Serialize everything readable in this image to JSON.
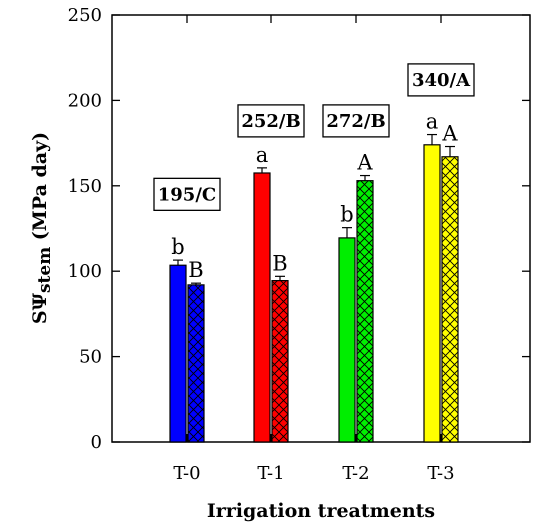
{
  "chart_data": {
    "type": "bar",
    "xlabel": "Irrigation treatments",
    "ylabel_main": "S",
    "ylabel_psi": "Ψ",
    "ylabel_sub": "stem",
    "ylabel_units": " (MPa day)",
    "ylim": [
      0,
      250
    ],
    "yticks": [
      0,
      50,
      100,
      150,
      200,
      250
    ],
    "ytick_labels": [
      "0",
      "50",
      "100",
      "150",
      "200",
      "250"
    ],
    "grid": false,
    "categories": [
      "T-0",
      "T-1",
      "T-2",
      "T-3"
    ],
    "colors": [
      "#0000ff",
      "#ff0000",
      "#00ee00",
      "#ffff00"
    ],
    "series": [
      {
        "pattern": "solid",
        "values": [
          103.5,
          157.5,
          119.5,
          174
        ],
        "errors": [
          3,
          3,
          6,
          6
        ],
        "letters": [
          "b",
          "a",
          "b",
          "a"
        ]
      },
      {
        "pattern": "crosshatch",
        "values": [
          92,
          94.5,
          153,
          167
        ],
        "errors": [
          1,
          2.5,
          3,
          6
        ],
        "letters": [
          "B",
          "B",
          "A",
          "A"
        ]
      }
    ],
    "annotations": [
      {
        "text": "195/C",
        "category": 0,
        "y": 145
      },
      {
        "text": "252/B",
        "category": 1,
        "y": 188
      },
      {
        "text": "272/B",
        "category": 2,
        "y": 188
      },
      {
        "text": "340/A",
        "category": 3,
        "y": 212
      }
    ]
  }
}
